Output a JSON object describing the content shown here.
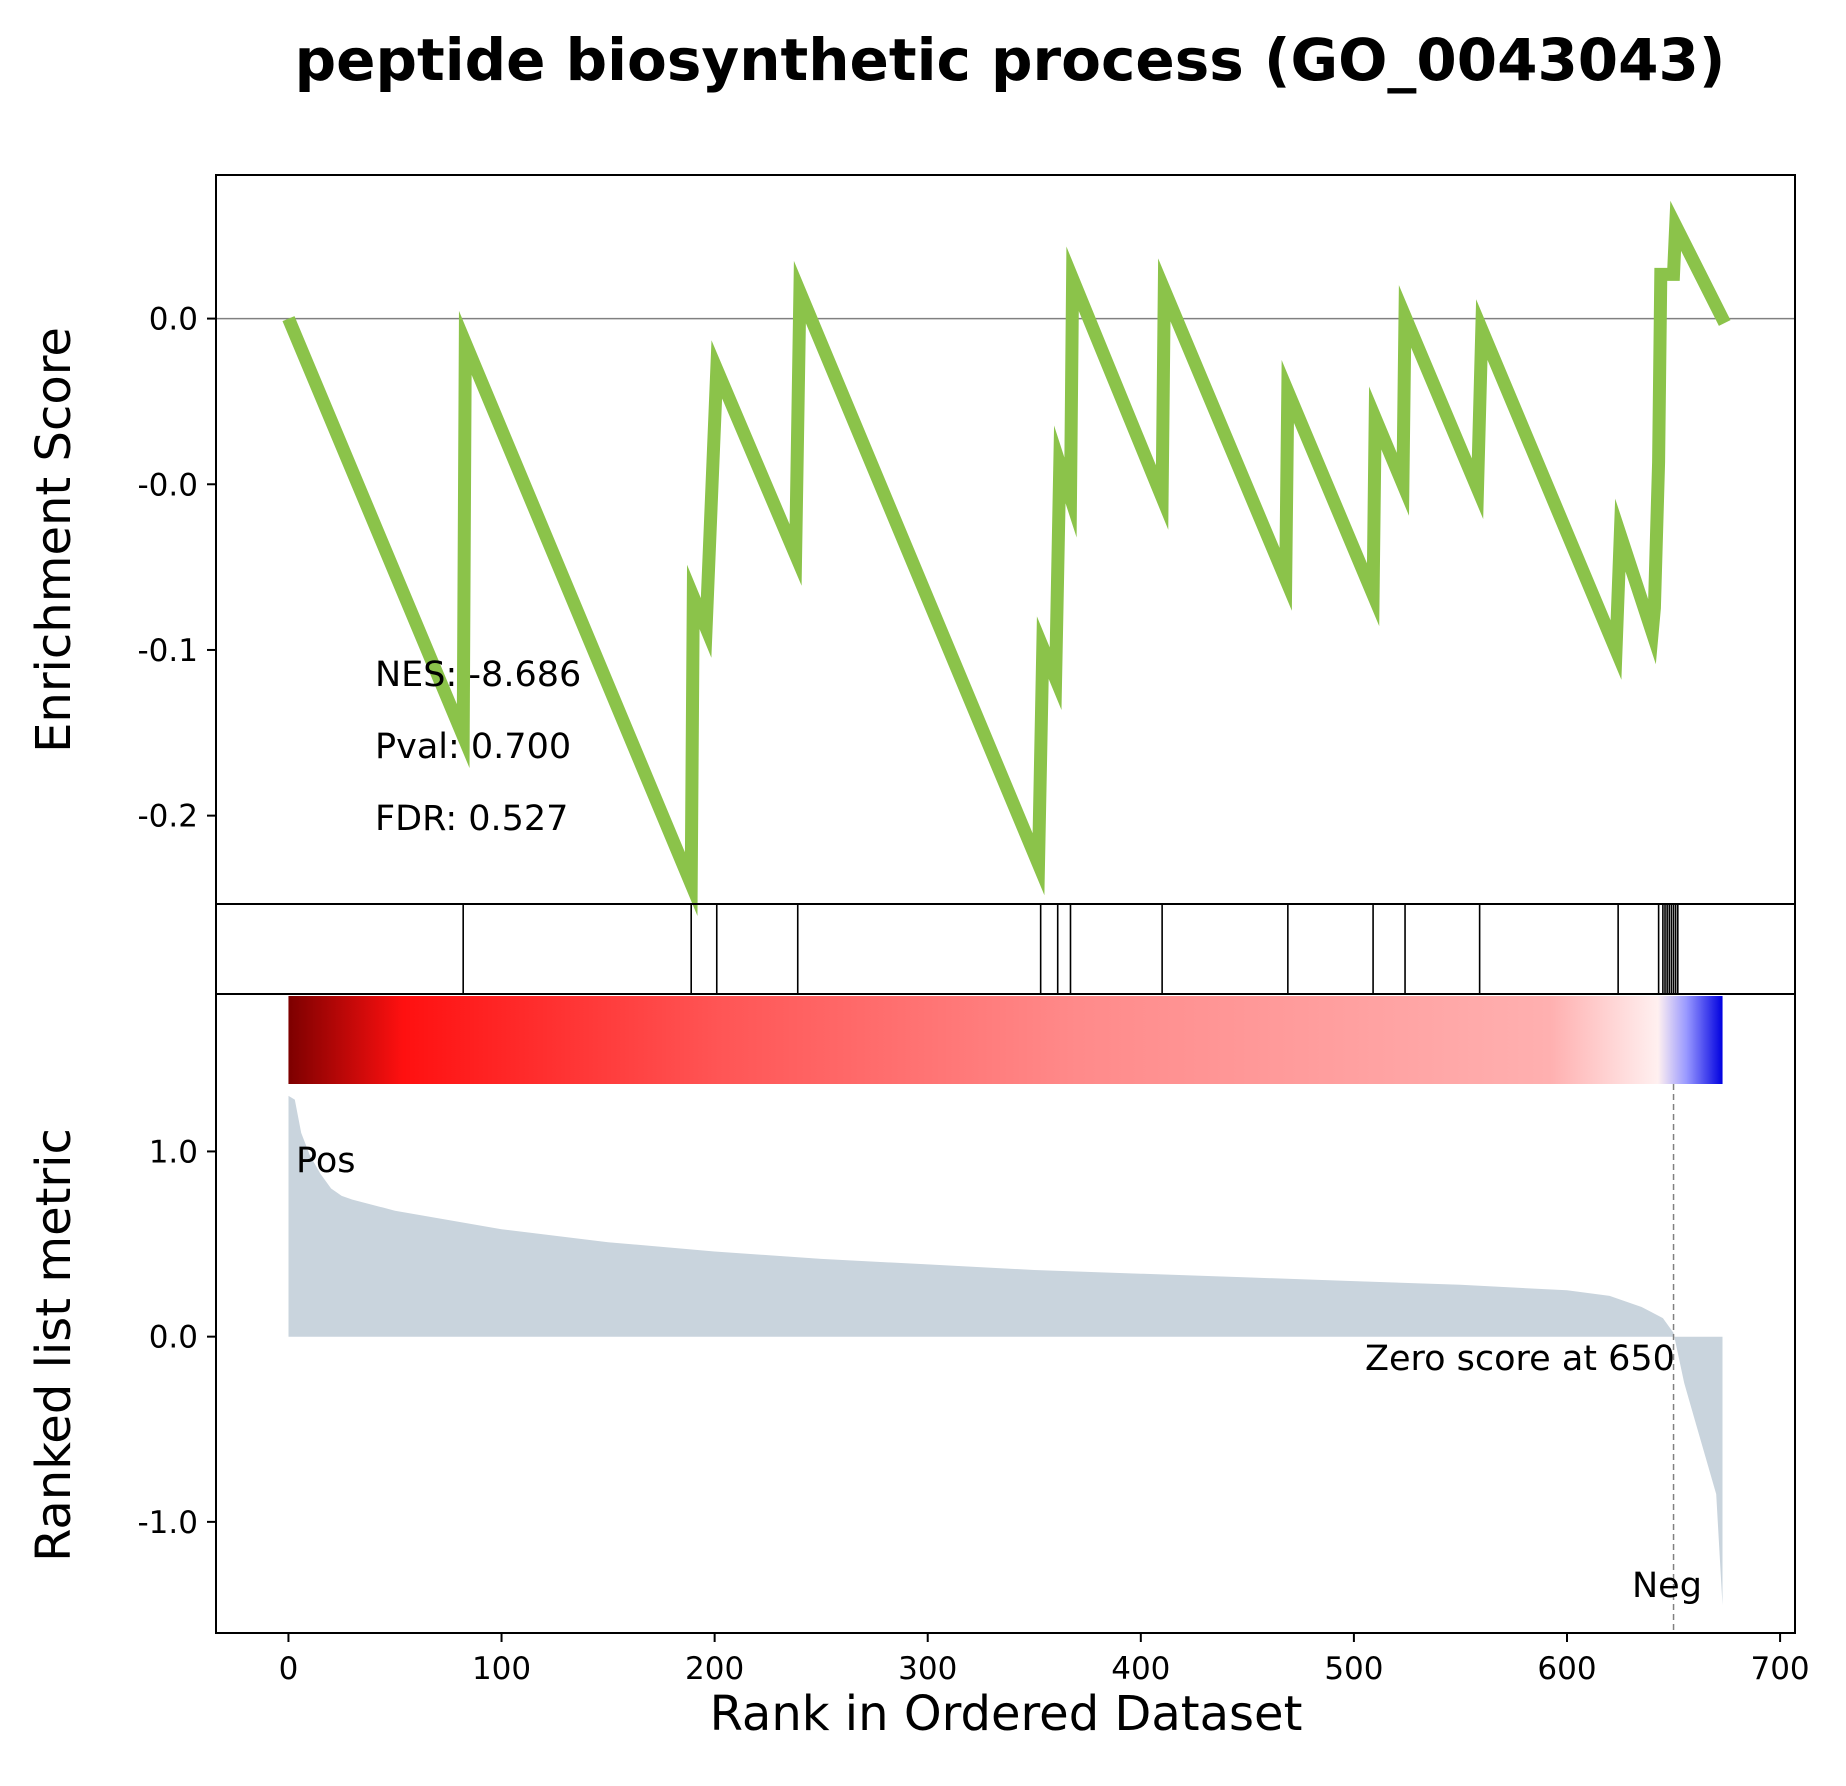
{
  "chart_data": {
    "type": "line",
    "title": "peptide biosynthetic process (GO_0043043)",
    "xlabel": "Rank in Ordered Dataset",
    "top_panel": {
      "ylabel": "Enrichment Score",
      "line_color": "#8BC34A",
      "ylim": [
        -0.265,
        0.065
      ],
      "yticks": [
        {
          "value": 0.0,
          "label": "0.0"
        },
        {
          "value": -0.075,
          "label": "-0.0"
        },
        {
          "value": -0.15,
          "label": "-0.1"
        },
        {
          "value": -0.225,
          "label": "-0.2"
        }
      ],
      "es_curve": [
        [
          0,
          0.0
        ],
        [
          82,
          -0.189
        ],
        [
          83,
          -0.011
        ],
        [
          189,
          -0.256
        ],
        [
          190,
          -0.126
        ],
        [
          196,
          -0.14
        ],
        [
          201,
          -0.023
        ],
        [
          238,
          -0.107
        ],
        [
          240,
          0.012
        ],
        [
          352,
          -0.247
        ],
        [
          354,
          -0.149
        ],
        [
          360,
          -0.163
        ],
        [
          362,
          -0.066
        ],
        [
          367,
          -0.081
        ],
        [
          368,
          0.018
        ],
        [
          410,
          -0.081
        ],
        [
          411,
          0.013
        ],
        [
          468,
          -0.118
        ],
        [
          469,
          -0.033
        ],
        [
          509,
          -0.125
        ],
        [
          510,
          -0.045
        ],
        [
          523,
          -0.075
        ],
        [
          524,
          0.001
        ],
        [
          558,
          -0.077
        ],
        [
          560,
          -0.005
        ],
        [
          623,
          -0.15
        ],
        [
          625,
          -0.098
        ],
        [
          640,
          -0.142
        ],
        [
          641,
          -0.131
        ],
        [
          643,
          -0.065
        ],
        [
          644,
          0.02
        ],
        [
          650,
          0.02
        ],
        [
          651,
          0.042
        ],
        [
          674,
          -0.002
        ]
      ],
      "stats": {
        "nes": "NES: -8.686",
        "pval": "Pval: 0.700",
        "fdr": "FDR: 0.527"
      }
    },
    "hits_panel": {
      "hit_ranks": [
        82,
        189,
        201,
        239,
        353,
        361,
        367,
        410,
        469,
        509,
        524,
        559,
        624,
        643,
        645,
        646,
        647,
        648,
        649,
        650,
        651,
        652
      ]
    },
    "color_bar": {
      "colors": [
        "#7d0000",
        "#ff1010",
        "#ff5555",
        "#ff8a8a",
        "#ffb0b0",
        "#fff0f0",
        "#9898ff",
        "#0000e0"
      ]
    },
    "bottom_panel": {
      "ylabel": "Ranked list metric",
      "fill_color": "#c9d4dd",
      "ylim": [
        -1.6,
        1.85
      ],
      "yticks": [
        {
          "value": 1.0,
          "label": "1.0"
        },
        {
          "value": 0.0,
          "label": "0.0"
        },
        {
          "value": -1.0,
          "label": "-1.0"
        }
      ],
      "metric_curve": [
        [
          0,
          1.3
        ],
        [
          3,
          1.28
        ],
        [
          6,
          1.1
        ],
        [
          10,
          0.98
        ],
        [
          15,
          0.88
        ],
        [
          20,
          0.8
        ],
        [
          25,
          0.76
        ],
        [
          30,
          0.74
        ],
        [
          50,
          0.68
        ],
        [
          75,
          0.63
        ],
        [
          100,
          0.58
        ],
        [
          150,
          0.51
        ],
        [
          200,
          0.46
        ],
        [
          250,
          0.42
        ],
        [
          300,
          0.39
        ],
        [
          350,
          0.36
        ],
        [
          400,
          0.34
        ],
        [
          450,
          0.32
        ],
        [
          500,
          0.3
        ],
        [
          550,
          0.28
        ],
        [
          600,
          0.25
        ],
        [
          620,
          0.22
        ],
        [
          635,
          0.16
        ],
        [
          645,
          0.1
        ],
        [
          650,
          0.02
        ],
        [
          655,
          -0.25
        ],
        [
          660,
          -0.45
        ],
        [
          665,
          -0.65
        ],
        [
          670,
          -0.85
        ],
        [
          673,
          -1.45
        ]
      ],
      "zero_score_rank": 650,
      "zero_label": "Zero score at 650",
      "pos_label": "Pos",
      "pos_color": "#ff0000",
      "neg_label": "Neg",
      "neg_color": "#0000ff"
    },
    "xlim": [
      -34,
      707
    ],
    "xticks": [
      {
        "value": 0,
        "label": "0"
      },
      {
        "value": 100,
        "label": "100"
      },
      {
        "value": 200,
        "label": "200"
      },
      {
        "value": 300,
        "label": "300"
      },
      {
        "value": 400,
        "label": "400"
      },
      {
        "value": 500,
        "label": "500"
      },
      {
        "value": 600,
        "label": "600"
      },
      {
        "value": 700,
        "label": "700"
      }
    ]
  }
}
